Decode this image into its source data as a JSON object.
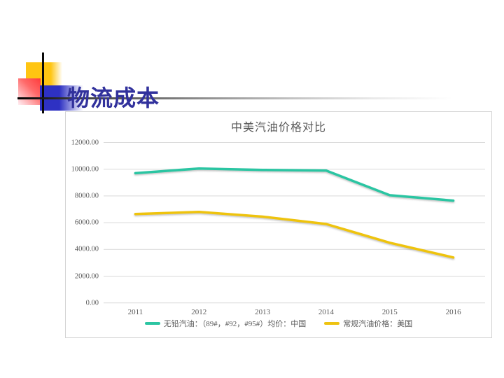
{
  "slide": {
    "title": "物流成本",
    "accent_colors": {
      "title_text": "#31319C",
      "square_yellow": "#FFC512",
      "square_blue": "#2E31C3",
      "square_red": "#FF3B3B"
    }
  },
  "chart_data": {
    "type": "line",
    "title": "中美汽油价格对比",
    "categories": [
      "2011",
      "2012",
      "2013",
      "2014",
      "2015",
      "2016"
    ],
    "series": [
      {
        "name": "无铅汽油：（89#，#92，#95#）均价：中国",
        "color": "#2CC5A2",
        "values": [
          9700,
          10050,
          9950,
          9900,
          8050,
          7650
        ]
      },
      {
        "name": "常规汽油价格：美国",
        "color": "#EEC311",
        "values": [
          6650,
          6800,
          6450,
          5900,
          4500,
          3400
        ]
      }
    ],
    "y_ticks": [
      "12000.00",
      "10000.00",
      "8000.00",
      "6000.00",
      "4000.00",
      "2000.00",
      "0.00"
    ],
    "ylim": [
      0,
      12000
    ],
    "grid": true,
    "gridline_color": "#d9d9d9",
    "text_color": "#595959",
    "legend_position": "bottom"
  }
}
